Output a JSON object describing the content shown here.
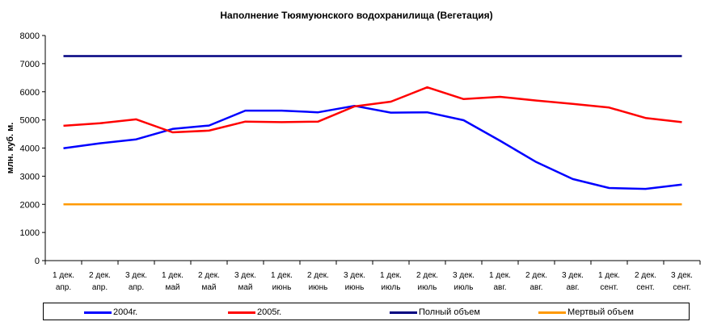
{
  "chart_data": {
    "type": "line",
    "title": "Наполнение Тюямуюнского водохранилища (Вегетация)",
    "ylabel": "млн. куб. м.",
    "xlabel": "",
    "ylim": [
      0,
      8000
    ],
    "yticks": [
      0,
      1000,
      2000,
      3000,
      4000,
      5000,
      6000,
      7000,
      8000
    ],
    "grid": false,
    "legend_position": "bottom",
    "categories": [
      [
        "1 дек.",
        "апр."
      ],
      [
        "2 дек.",
        "апр."
      ],
      [
        "3 дек.",
        "апр."
      ],
      [
        "1 дек.",
        "май"
      ],
      [
        "2 дек.",
        "май"
      ],
      [
        "3 дек.",
        "май"
      ],
      [
        "1 дек.",
        "июнь"
      ],
      [
        "2 дек.",
        "июнь"
      ],
      [
        "3 дек.",
        "июнь"
      ],
      [
        "1 дек.",
        "июль"
      ],
      [
        "2 дек.",
        "июль"
      ],
      [
        "3 дек.",
        "июль"
      ],
      [
        "1 дек.",
        "авг."
      ],
      [
        "2 дек.",
        "авг."
      ],
      [
        "3 дек.",
        "авг."
      ],
      [
        "1 дек.",
        "сент."
      ],
      [
        "2 дек.",
        "сент."
      ],
      [
        "3 дек.",
        "сент."
      ]
    ],
    "series": [
      {
        "name": "2004г.",
        "color": "#0000ff",
        "values": [
          3990,
          4170,
          4310,
          4680,
          4800,
          5330,
          5330,
          5270,
          5500,
          5260,
          5270,
          4990,
          4260,
          3500,
          2900,
          2580,
          2550,
          2700
        ]
      },
      {
        "name": "2005г.",
        "color": "#ff0000",
        "values": [
          4790,
          4880,
          5020,
          4560,
          4620,
          4940,
          4920,
          4940,
          5480,
          5650,
          6160,
          5740,
          5820,
          5690,
          5570,
          5440,
          5070,
          4920
        ]
      },
      {
        "name": "Полный объем",
        "color": "#000080",
        "values": [
          7270,
          7270,
          7270,
          7270,
          7270,
          7270,
          7270,
          7270,
          7270,
          7270,
          7270,
          7270,
          7270,
          7270,
          7270,
          7270,
          7270,
          7270
        ]
      },
      {
        "name": "Мертвый объем",
        "color": "#ff9900",
        "values": [
          2000,
          2000,
          2000,
          2000,
          2000,
          2000,
          2000,
          2000,
          2000,
          2000,
          2000,
          2000,
          2000,
          2000,
          2000,
          2000,
          2000,
          2000
        ]
      }
    ]
  }
}
